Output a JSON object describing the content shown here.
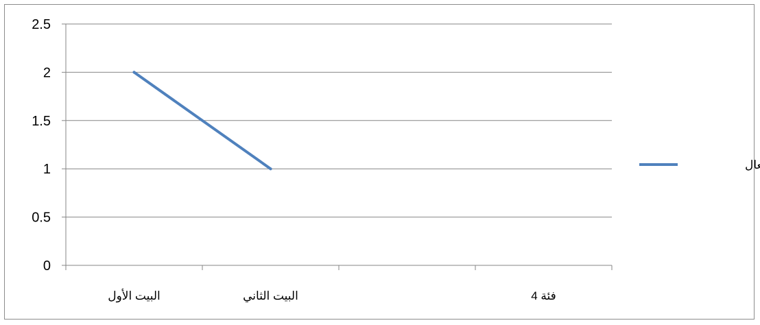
{
  "chart_data": {
    "type": "line",
    "categories": [
      "البيت الأول",
      "البيت الثاني",
      "",
      "فئة 4"
    ],
    "series": [
      {
        "name": "عدد الأفعال",
        "values": [
          2,
          1,
          null,
          null
        ],
        "color": "#4f81bd"
      }
    ],
    "yticks": [
      "0",
      "0.5",
      "1",
      "1.5",
      "2",
      "2.5"
    ],
    "ylim": [
      0,
      2.5
    ],
    "grid": true,
    "legend_position": "right"
  }
}
